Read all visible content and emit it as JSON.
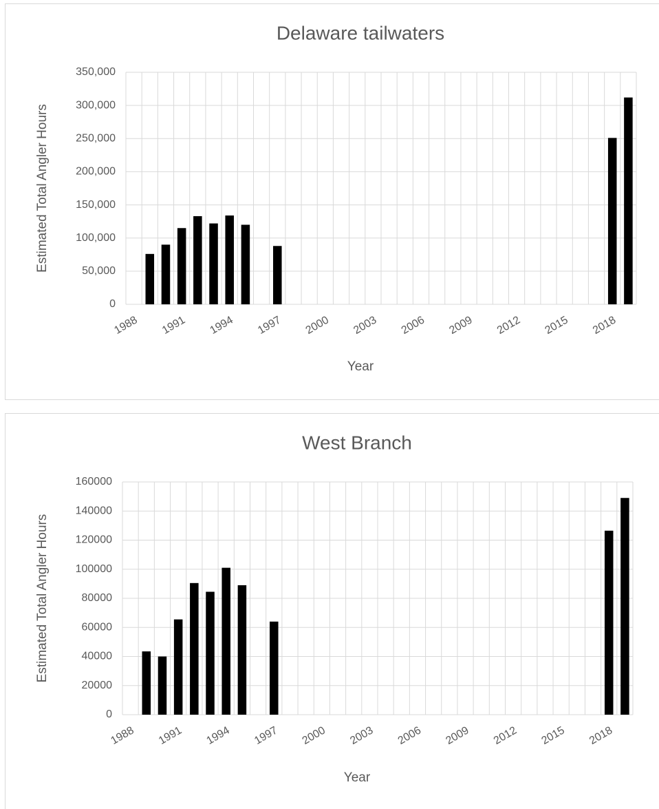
{
  "chart_data": [
    {
      "type": "bar",
      "title": "Delaware tailwaters",
      "x_label": "Year",
      "y_label": "Estimated Total Angler Hours",
      "categories": [
        "1988",
        null,
        null,
        "1991",
        null,
        null,
        "1994",
        null,
        null,
        "1997",
        null,
        null,
        "2000",
        null,
        null,
        "2003",
        null,
        null,
        "2006",
        null,
        null,
        "2009",
        null,
        null,
        "2012",
        null,
        null,
        "2015",
        null,
        null,
        "2018",
        null
      ],
      "values": [
        null,
        76000,
        90000,
        115000,
        133000,
        122000,
        134000,
        120000,
        null,
        88000,
        null,
        null,
        null,
        null,
        null,
        null,
        null,
        null,
        null,
        null,
        null,
        null,
        null,
        null,
        null,
        null,
        null,
        null,
        null,
        null,
        251000,
        312000
      ],
      "color": "#000000",
      "ylim": [
        0,
        350000
      ],
      "yticks": [
        0,
        {
          "value": 50000,
          "label": "50,000"
        },
        {
          "value": 100000,
          "label": "100,000"
        },
        {
          "value": 150000,
          "label": "150,000"
        },
        {
          "value": 200000,
          "label": "200,000"
        },
        {
          "value": 250000,
          "label": "250,000"
        },
        {
          "value": 300000,
          "label": "300,000"
        },
        {
          "value": 350000,
          "label": "350,000"
        }
      ],
      "grid": true
    },
    {
      "type": "bar",
      "title": "West Branch",
      "x_label": "Year",
      "y_label": "Estimated Total Angler Hours",
      "categories": [
        "1988",
        null,
        null,
        "1991",
        null,
        null,
        "1994",
        null,
        null,
        "1997",
        null,
        null,
        "2000",
        null,
        null,
        "2003",
        null,
        null,
        "2006",
        null,
        null,
        "2009",
        null,
        null,
        "2012",
        null,
        null,
        "2015",
        null,
        null,
        "2018",
        null
      ],
      "values": [
        null,
        43500,
        40000,
        65500,
        90500,
        84500,
        101000,
        89000,
        null,
        64000,
        null,
        null,
        null,
        null,
        null,
        null,
        null,
        null,
        null,
        null,
        null,
        null,
        null,
        null,
        null,
        null,
        null,
        null,
        null,
        null,
        126500,
        149000
      ],
      "color": "#000000",
      "ylim": [
        0,
        160000
      ],
      "yticks": [
        0,
        20000,
        40000,
        60000,
        80000,
        100000,
        120000,
        140000,
        160000
      ],
      "grid": true
    }
  ]
}
